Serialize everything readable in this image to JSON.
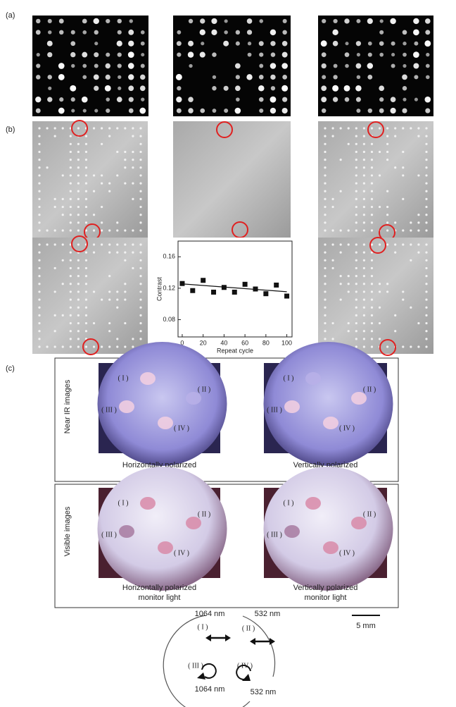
{
  "panel_labels": [
    "(a)",
    "(b)",
    "(c)"
  ],
  "chart_data": {
    "type": "scatter",
    "xlabel": "Repeat cycle",
    "ylabel": "Contrast",
    "x": [
      0,
      10,
      20,
      30,
      40,
      50,
      60,
      70,
      80,
      90,
      100
    ],
    "values": [
      0.126,
      0.117,
      0.13,
      0.115,
      0.121,
      0.115,
      0.125,
      0.119,
      0.113,
      0.124,
      0.11
    ],
    "color": "#111111",
    "fit": {
      "x": [
        0,
        100
      ],
      "values": [
        0.1255,
        0.1155
      ]
    },
    "xlim": [
      -4,
      105
    ],
    "ylim": [
      0.058,
      0.18
    ],
    "xticks": [
      0,
      20,
      40,
      60,
      80,
      100
    ],
    "yticks": [
      0.08,
      0.12,
      0.16
    ]
  },
  "section_c": {
    "row_titles": [
      "Near IR images",
      "Visible images"
    ],
    "captions": [
      [
        "Horizontally polarized",
        "monitor light"
      ],
      [
        "Vertically polarized",
        "monitor light"
      ]
    ],
    "region_labels": [
      "( I )",
      "( II )",
      "( III )",
      "( IV )"
    ],
    "scale_bar": "5 mm"
  },
  "diagram": {
    "top_labels": [
      "1064 nm",
      "532 nm"
    ],
    "bottom_labels": [
      "1064 nm",
      "532 nm"
    ]
  }
}
